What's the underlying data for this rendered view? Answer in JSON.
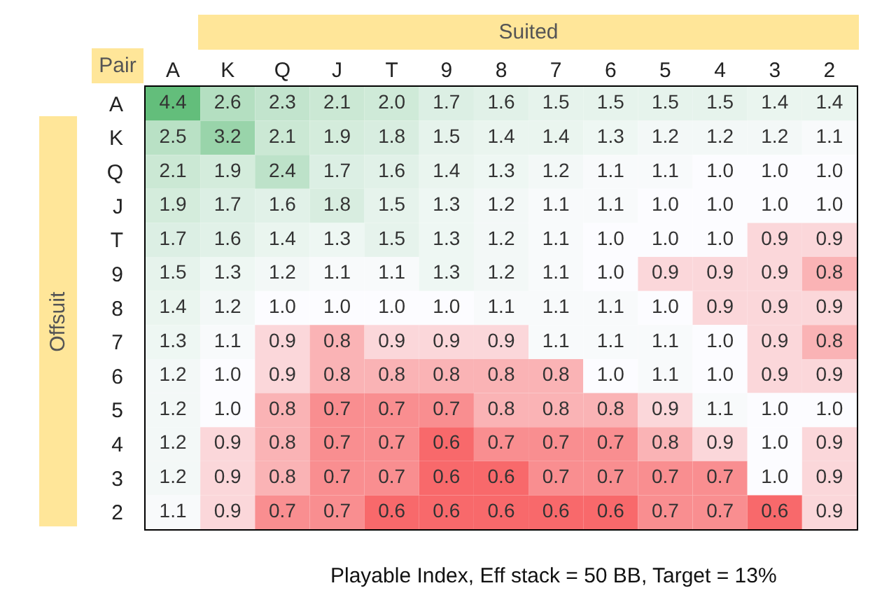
{
  "chart_data": {
    "type": "heatmap",
    "xlabel": "Suited",
    "ylabel": "Offsuit",
    "annotations": [
      "Pair",
      "Playable Index, Eff stack = 50 BB, Target = 13%"
    ],
    "categories": [
      "A",
      "K",
      "Q",
      "J",
      "T",
      "9",
      "8",
      "7",
      "6",
      "5",
      "4",
      "3",
      "2"
    ],
    "y_categories": [
      "A",
      "K",
      "Q",
      "J",
      "T",
      "9",
      "8",
      "7",
      "6",
      "5",
      "4",
      "3",
      "2"
    ],
    "cells": [
      [
        4.4,
        2.6,
        2.3,
        2.1,
        2.0,
        1.7,
        1.6,
        1.5,
        1.5,
        1.5,
        1.5,
        1.4,
        1.4
      ],
      [
        2.5,
        3.2,
        2.1,
        1.9,
        1.8,
        1.5,
        1.4,
        1.4,
        1.3,
        1.2,
        1.2,
        1.2,
        1.1
      ],
      [
        2.1,
        1.9,
        2.4,
        1.7,
        1.6,
        1.4,
        1.3,
        1.2,
        1.1,
        1.1,
        1.0,
        1.0,
        1.0
      ],
      [
        1.9,
        1.7,
        1.6,
        1.8,
        1.5,
        1.3,
        1.2,
        1.1,
        1.1,
        1.0,
        1.0,
        1.0,
        1.0
      ],
      [
        1.7,
        1.6,
        1.4,
        1.3,
        1.5,
        1.3,
        1.2,
        1.1,
        1.0,
        1.0,
        1.0,
        0.9,
        0.9
      ],
      [
        1.5,
        1.3,
        1.2,
        1.1,
        1.1,
        1.3,
        1.2,
        1.1,
        1.0,
        0.9,
        0.9,
        0.9,
        0.8
      ],
      [
        1.4,
        1.2,
        1.0,
        1.0,
        1.0,
        1.0,
        1.1,
        1.1,
        1.1,
        1.0,
        0.9,
        0.9,
        0.9
      ],
      [
        1.3,
        1.1,
        0.9,
        0.8,
        0.9,
        0.9,
        0.9,
        1.1,
        1.1,
        1.1,
        1.0,
        0.9,
        0.8
      ],
      [
        1.2,
        1.0,
        0.9,
        0.8,
        0.8,
        0.8,
        0.8,
        0.8,
        1.0,
        1.1,
        1.0,
        0.9,
        0.9
      ],
      [
        1.2,
        1.0,
        0.8,
        0.7,
        0.7,
        0.7,
        0.8,
        0.8,
        0.8,
        0.9,
        1.1,
        1.0,
        1.0
      ],
      [
        1.2,
        0.9,
        0.8,
        0.7,
        0.7,
        0.6,
        0.7,
        0.7,
        0.7,
        0.8,
        0.9,
        1.0,
        0.9
      ],
      [
        1.2,
        0.9,
        0.8,
        0.7,
        0.7,
        0.6,
        0.6,
        0.7,
        0.7,
        0.7,
        0.7,
        1.0,
        0.9
      ],
      [
        1.1,
        0.9,
        0.7,
        0.7,
        0.6,
        0.6,
        0.6,
        0.6,
        0.6,
        0.7,
        0.7,
        0.6,
        0.9
      ]
    ],
    "cell_labels": [
      [
        "4.4",
        "2.6",
        "2.3",
        "2.1",
        "2.0",
        "1.7",
        "1.6",
        "1.5",
        "1.5",
        "1.5",
        "1.5",
        "1.4",
        "1.4"
      ],
      [
        "2.5",
        "3.2",
        "2.1",
        "1.9",
        "1.8",
        "1.5",
        "1.4",
        "1.4",
        "1.3",
        "1.2",
        "1.2",
        "1.2",
        "1.1"
      ],
      [
        "2.1",
        "1.9",
        "2.4",
        "1.7",
        "1.6",
        "1.4",
        "1.3",
        "1.2",
        "1.1",
        "1.1",
        "1.0",
        "1.0",
        "1.0"
      ],
      [
        "1.9",
        "1.7",
        "1.6",
        "1.8",
        "1.5",
        "1.3",
        "1.2",
        "1.1",
        "1.1",
        "1.0",
        "1.0",
        "1.0",
        "1.0"
      ],
      [
        "1.7",
        "1.6",
        "1.4",
        "1.3",
        "1.5",
        "1.3",
        "1.2",
        "1.1",
        "1.0",
        "1.0",
        "1.0",
        "0.9",
        "0.9"
      ],
      [
        "1.5",
        "1.3",
        "1.2",
        "1.1",
        "1.1",
        "1.3",
        "1.2",
        "1.1",
        "1.0",
        "0.9",
        "0.9",
        "0.9",
        "0.8"
      ],
      [
        "1.4",
        "1.2",
        "1.0",
        "1.0",
        "1.0",
        "1.0",
        "1.1",
        "1.1",
        "1.1",
        "1.0",
        "0.9",
        "0.9",
        "0.9"
      ],
      [
        "1.3",
        "1.1",
        "0.9",
        "0.8",
        "0.9",
        "0.9",
        "0.9",
        "1.1",
        "1.1",
        "1.1",
        "1.0",
        "0.9",
        "0.8"
      ],
      [
        "1.2",
        "1.0",
        "0.9",
        "0.8",
        "0.8",
        "0.8",
        "0.8",
        "0.8",
        "1.0",
        "1.1",
        "1.0",
        "0.9",
        "0.9"
      ],
      [
        "1.2",
        "1.0",
        "0.8",
        "0.7",
        "0.7",
        "0.7",
        "0.8",
        "0.8",
        "0.8",
        "0.9",
        "1.1",
        "1.0",
        "1.0"
      ],
      [
        "1.2",
        "0.9",
        "0.8",
        "0.7",
        "0.7",
        "0.6",
        "0.7",
        "0.7",
        "0.7",
        "0.8",
        "0.9",
        "1.0",
        "0.9"
      ],
      [
        "1.2",
        "0.9",
        "0.8",
        "0.7",
        "0.7",
        "0.6",
        "0.6",
        "0.7",
        "0.7",
        "0.7",
        "0.7",
        "1.0",
        "0.9"
      ],
      [
        "1.1",
        "0.9",
        "0.7",
        "0.7",
        "0.6",
        "0.6",
        "0.6",
        "0.6",
        "0.6",
        "0.7",
        "0.7",
        "0.6",
        "0.9"
      ]
    ],
    "grid": false
  }
}
